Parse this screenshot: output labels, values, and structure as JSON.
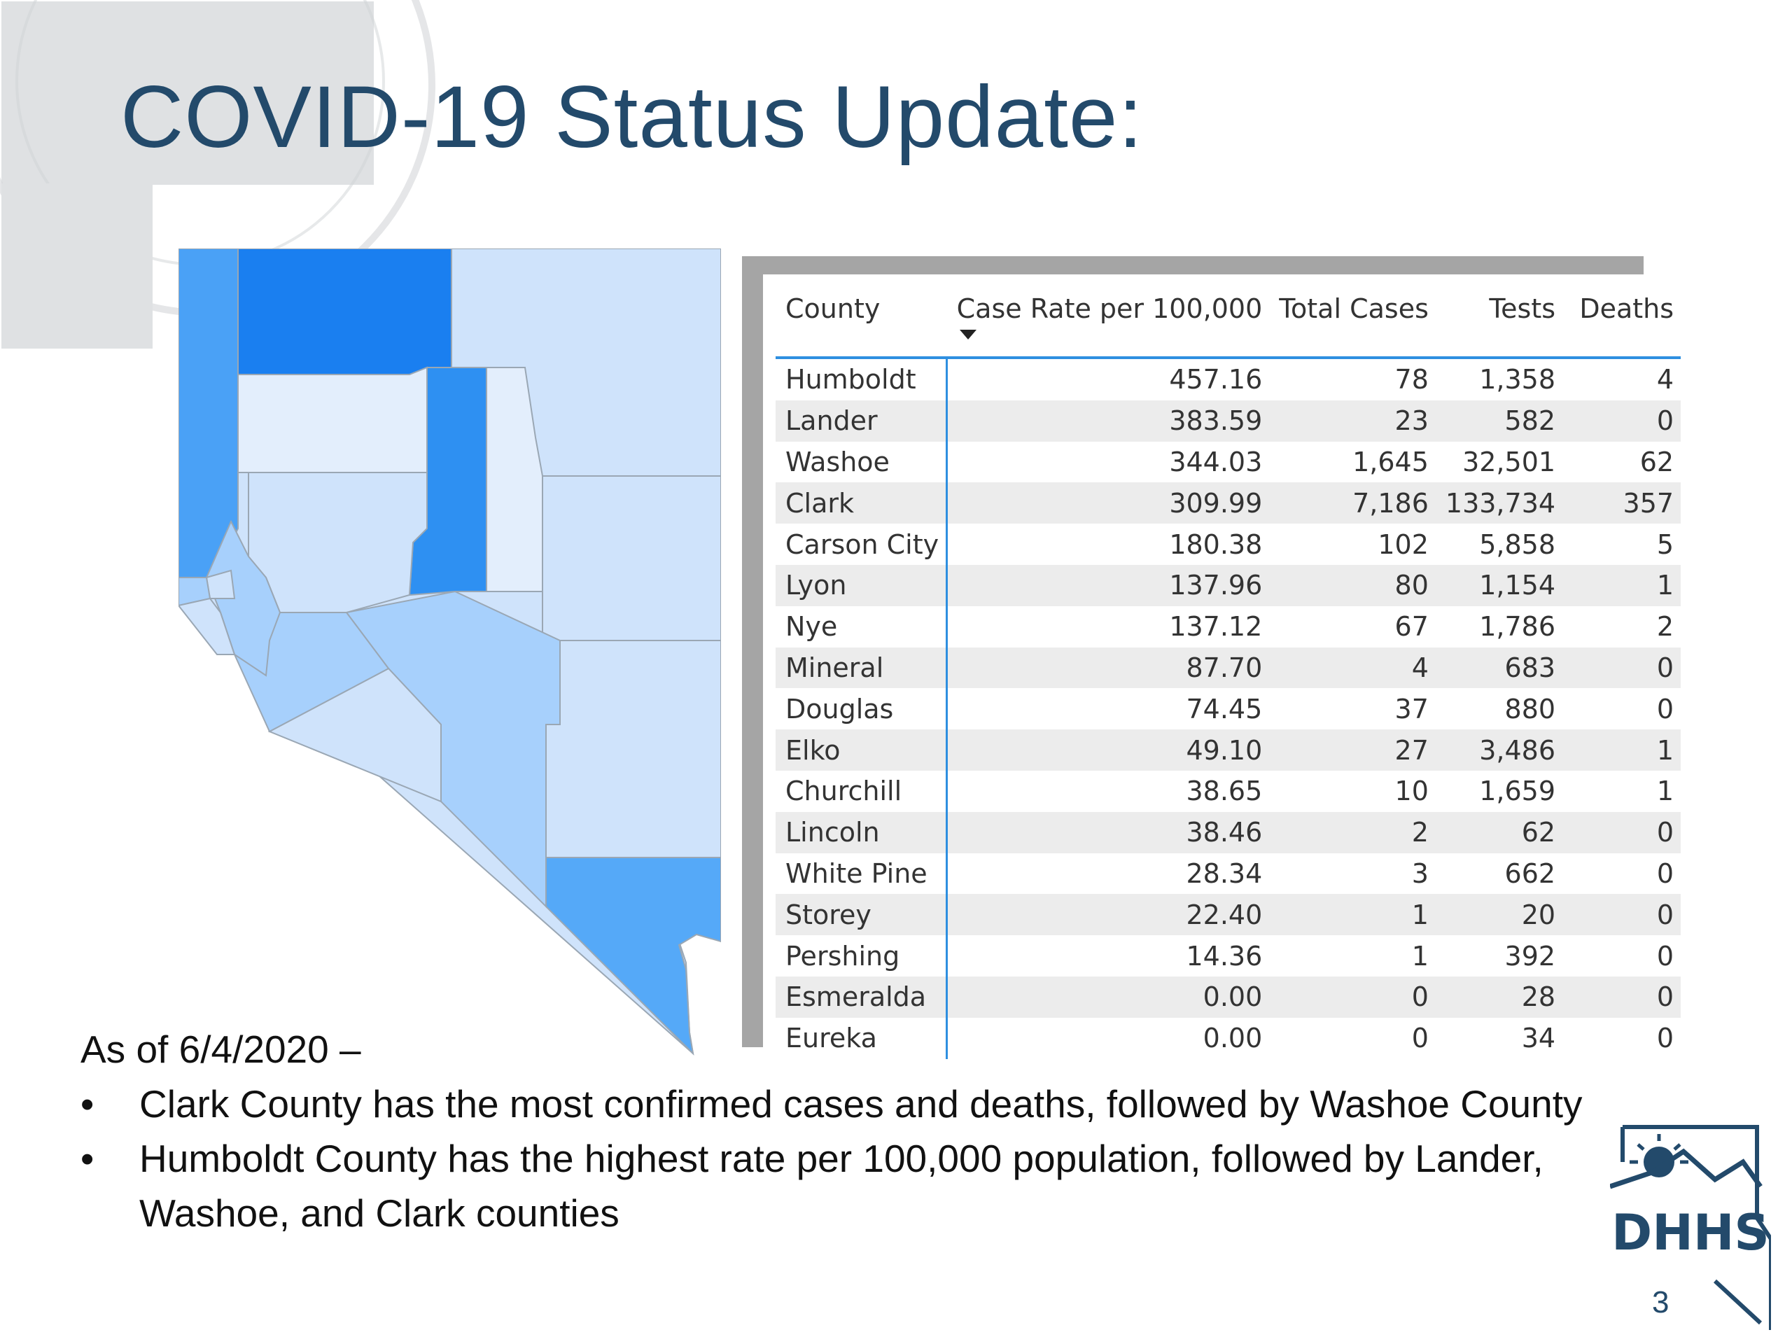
{
  "slide": {
    "title": "COVID-19 Status Update:",
    "page_number": "3"
  },
  "colors": {
    "title": "#234a6b",
    "accent": "#2e8fe0",
    "frame": "#a5a5a5",
    "map_levels": [
      "#cfe3fb",
      "#a7d0fc",
      "#6fb4fb",
      "#3a97f5",
      "#1a7ff0"
    ]
  },
  "table": {
    "headers": {
      "county": "County",
      "case_rate": "Case Rate per 100,000",
      "total_cases": "Total Cases",
      "tests": "Tests",
      "deaths": "Deaths"
    },
    "sort": "descending",
    "rows": [
      {
        "county": "Humboldt",
        "rate": "457.16",
        "cases": "78",
        "tests": "1,358",
        "deaths": "4"
      },
      {
        "county": "Lander",
        "rate": "383.59",
        "cases": "23",
        "tests": "582",
        "deaths": "0"
      },
      {
        "county": "Washoe",
        "rate": "344.03",
        "cases": "1,645",
        "tests": "32,501",
        "deaths": "62"
      },
      {
        "county": "Clark",
        "rate": "309.99",
        "cases": "7,186",
        "tests": "133,734",
        "deaths": "357"
      },
      {
        "county": "Carson City",
        "rate": "180.38",
        "cases": "102",
        "tests": "5,858",
        "deaths": "5"
      },
      {
        "county": "Lyon",
        "rate": "137.96",
        "cases": "80",
        "tests": "1,154",
        "deaths": "1"
      },
      {
        "county": "Nye",
        "rate": "137.12",
        "cases": "67",
        "tests": "1,786",
        "deaths": "2"
      },
      {
        "county": "Mineral",
        "rate": "87.70",
        "cases": "4",
        "tests": "683",
        "deaths": "0"
      },
      {
        "county": "Douglas",
        "rate": "74.45",
        "cases": "37",
        "tests": "880",
        "deaths": "0"
      },
      {
        "county": "Elko",
        "rate": "49.10",
        "cases": "27",
        "tests": "3,486",
        "deaths": "1"
      },
      {
        "county": "Churchill",
        "rate": "38.65",
        "cases": "10",
        "tests": "1,659",
        "deaths": "1"
      },
      {
        "county": "Lincoln",
        "rate": "38.46",
        "cases": "2",
        "tests": "62",
        "deaths": "0"
      },
      {
        "county": "White Pine",
        "rate": "28.34",
        "cases": "3",
        "tests": "662",
        "deaths": "0"
      },
      {
        "county": "Storey",
        "rate": "22.40",
        "cases": "1",
        "tests": "20",
        "deaths": "0"
      },
      {
        "county": "Pershing",
        "rate": "14.36",
        "cases": "1",
        "tests": "392",
        "deaths": "0"
      },
      {
        "county": "Esmeralda",
        "rate": "0.00",
        "cases": "0",
        "tests": "28",
        "deaths": "0"
      },
      {
        "county": "Eureka",
        "rate": "0.00",
        "cases": "0",
        "tests": "34",
        "deaths": "0"
      }
    ]
  },
  "summary": {
    "lead": "As of 6/4/2020 –",
    "bullets": [
      "Clark County has the most confirmed cases and deaths, followed by Washoe County",
      "Humboldt County has the highest rate per 100,000 population, followed by Lander, Washoe, and Clark counties"
    ]
  },
  "logo": {
    "icon": "dhhs-nevada-logo",
    "text": "DHHS"
  }
}
